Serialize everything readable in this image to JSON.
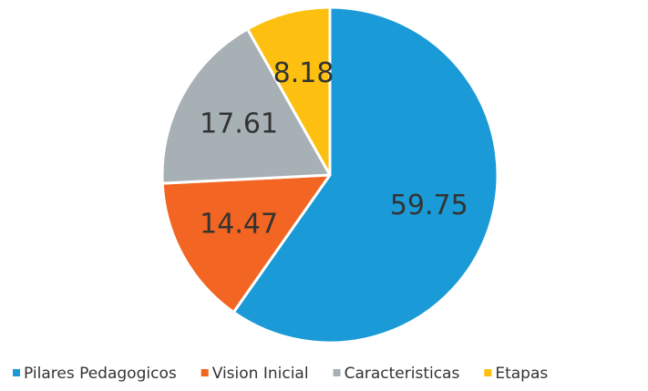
{
  "chart_data": {
    "type": "pie",
    "categories": [
      "Pilares Pedagogicos",
      "Vision Inicial",
      "Caracteristicas",
      "Etapas"
    ],
    "values": [
      59.75,
      14.47,
      17.61,
      8.18
    ],
    "colors": [
      "#1a9ad6",
      "#f26522",
      "#a6b0b5",
      "#fdc010"
    ],
    "legend": "bottom"
  }
}
